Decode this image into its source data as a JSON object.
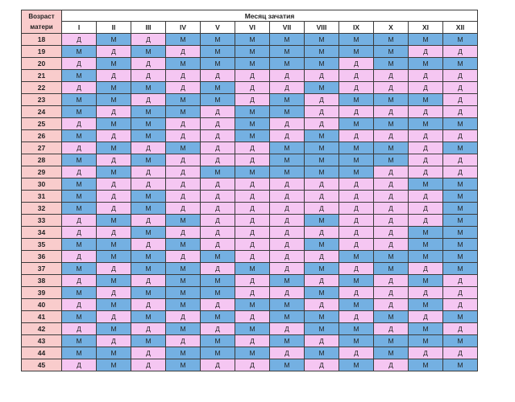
{
  "header": {
    "age_label_line1": "Возраст",
    "age_label_line2": "матери",
    "month_title": "Месяц зачатия"
  },
  "months": [
    "I",
    "II",
    "III",
    "IV",
    "V",
    "VI",
    "VII",
    "VIII",
    "IX",
    "X",
    "XI",
    "XII"
  ],
  "colors": {
    "boy_cell": "#74b0e2",
    "girl_cell": "#f5c6f2",
    "header_pink": "#f9cccc",
    "border": "#3b3b3b"
  },
  "rows": [
    {
      "age": "18",
      "cells": [
        "Д",
        "М",
        "Д",
        "М",
        "М",
        "М",
        "М",
        "М",
        "М",
        "М",
        "М",
        "М"
      ]
    },
    {
      "age": "19",
      "cells": [
        "М",
        "Д",
        "М",
        "Д",
        "М",
        "М",
        "М",
        "М",
        "М",
        "М",
        "Д",
        "Д"
      ]
    },
    {
      "age": "20",
      "cells": [
        "Д",
        "М",
        "Д",
        "М",
        "М",
        "М",
        "М",
        "М",
        "Д",
        "М",
        "М",
        "М"
      ]
    },
    {
      "age": "21",
      "cells": [
        "М",
        "Д",
        "Д",
        "Д",
        "Д",
        "Д",
        "Д",
        "Д",
        "Д",
        "Д",
        "Д",
        "Д"
      ]
    },
    {
      "age": "22",
      "cells": [
        "Д",
        "М",
        "М",
        "Д",
        "М",
        "Д",
        "Д",
        "М",
        "Д",
        "Д",
        "Д",
        "Д"
      ]
    },
    {
      "age": "23",
      "cells": [
        "М",
        "М",
        "Д",
        "М",
        "М",
        "Д",
        "М",
        "Д",
        "М",
        "М",
        "М",
        "Д"
      ]
    },
    {
      "age": "24",
      "cells": [
        "М",
        "Д",
        "М",
        "М",
        "Д",
        "М",
        "М",
        "Д",
        "Д",
        "Д",
        "Д",
        "Д"
      ]
    },
    {
      "age": "25",
      "cells": [
        "Д",
        "М",
        "М",
        "Д",
        "Д",
        "М",
        "Д",
        "Д",
        "М",
        "М",
        "М",
        "М"
      ]
    },
    {
      "age": "26",
      "cells": [
        "М",
        "Д",
        "М",
        "Д",
        "Д",
        "М",
        "Д",
        "М",
        "Д",
        "Д",
        "Д",
        "Д"
      ]
    },
    {
      "age": "27",
      "cells": [
        "Д",
        "М",
        "Д",
        "М",
        "Д",
        "Д",
        "М",
        "М",
        "М",
        "М",
        "Д",
        "М"
      ]
    },
    {
      "age": "28",
      "cells": [
        "М",
        "Д",
        "М",
        "Д",
        "Д",
        "Д",
        "М",
        "М",
        "М",
        "М",
        "Д",
        "Д"
      ]
    },
    {
      "age": "29",
      "cells": [
        "Д",
        "М",
        "Д",
        "Д",
        "М",
        "М",
        "М",
        "М",
        "М",
        "Д",
        "Д",
        "Д"
      ]
    },
    {
      "age": "30",
      "cells": [
        "М",
        "Д",
        "Д",
        "Д",
        "Д",
        "Д",
        "Д",
        "Д",
        "Д",
        "Д",
        "М",
        "М"
      ]
    },
    {
      "age": "31",
      "cells": [
        "М",
        "Д",
        "М",
        "Д",
        "Д",
        "Д",
        "Д",
        "Д",
        "Д",
        "Д",
        "Д",
        "М"
      ]
    },
    {
      "age": "32",
      "cells": [
        "М",
        "Д",
        "М",
        "Д",
        "Д",
        "Д",
        "Д",
        "Д",
        "Д",
        "Д",
        "Д",
        "М"
      ]
    },
    {
      "age": "33",
      "cells": [
        "Д",
        "М",
        "Д",
        "М",
        "Д",
        "Д",
        "Д",
        "М",
        "Д",
        "Д",
        "Д",
        "М"
      ]
    },
    {
      "age": "34",
      "cells": [
        "Д",
        "Д",
        "М",
        "Д",
        "Д",
        "Д",
        "Д",
        "Д",
        "Д",
        "Д",
        "М",
        "М"
      ]
    },
    {
      "age": "35",
      "cells": [
        "М",
        "М",
        "Д",
        "М",
        "Д",
        "Д",
        "Д",
        "М",
        "Д",
        "Д",
        "М",
        "М"
      ]
    },
    {
      "age": "36",
      "cells": [
        "Д",
        "М",
        "М",
        "Д",
        "М",
        "Д",
        "Д",
        "Д",
        "М",
        "М",
        "М",
        "М"
      ]
    },
    {
      "age": "37",
      "cells": [
        "М",
        "Д",
        "М",
        "М",
        "Д",
        "М",
        "Д",
        "М",
        "Д",
        "М",
        "Д",
        "М"
      ]
    },
    {
      "age": "38",
      "cells": [
        "Д",
        "М",
        "Д",
        "М",
        "М",
        "Д",
        "М",
        "Д",
        "М",
        "Д",
        "М",
        "Д"
      ]
    },
    {
      "age": "39",
      "cells": [
        "М",
        "Д",
        "М",
        "М",
        "М",
        "Д",
        "Д",
        "М",
        "Д",
        "Д",
        "Д",
        "Д"
      ]
    },
    {
      "age": "40",
      "cells": [
        "Д",
        "М",
        "Д",
        "М",
        "Д",
        "М",
        "М",
        "Д",
        "М",
        "Д",
        "М",
        "Д"
      ]
    },
    {
      "age": "41",
      "cells": [
        "М",
        "Д",
        "М",
        "Д",
        "М",
        "Д",
        "М",
        "М",
        "Д",
        "М",
        "Д",
        "М"
      ]
    },
    {
      "age": "42",
      "cells": [
        "Д",
        "М",
        "Д",
        "М",
        "Д",
        "М",
        "Д",
        "М",
        "М",
        "Д",
        "М",
        "Д"
      ]
    },
    {
      "age": "43",
      "cells": [
        "М",
        "Д",
        "М",
        "Д",
        "М",
        "Д",
        "М",
        "Д",
        "М",
        "М",
        "М",
        "М"
      ]
    },
    {
      "age": "44",
      "cells": [
        "М",
        "М",
        "Д",
        "М",
        "М",
        "М",
        "Д",
        "М",
        "Д",
        "М",
        "Д",
        "Д"
      ]
    },
    {
      "age": "45",
      "cells": [
        "Д",
        "М",
        "Д",
        "М",
        "Д",
        "Д",
        "М",
        "Д",
        "М",
        "Д",
        "М",
        "М"
      ]
    }
  ]
}
